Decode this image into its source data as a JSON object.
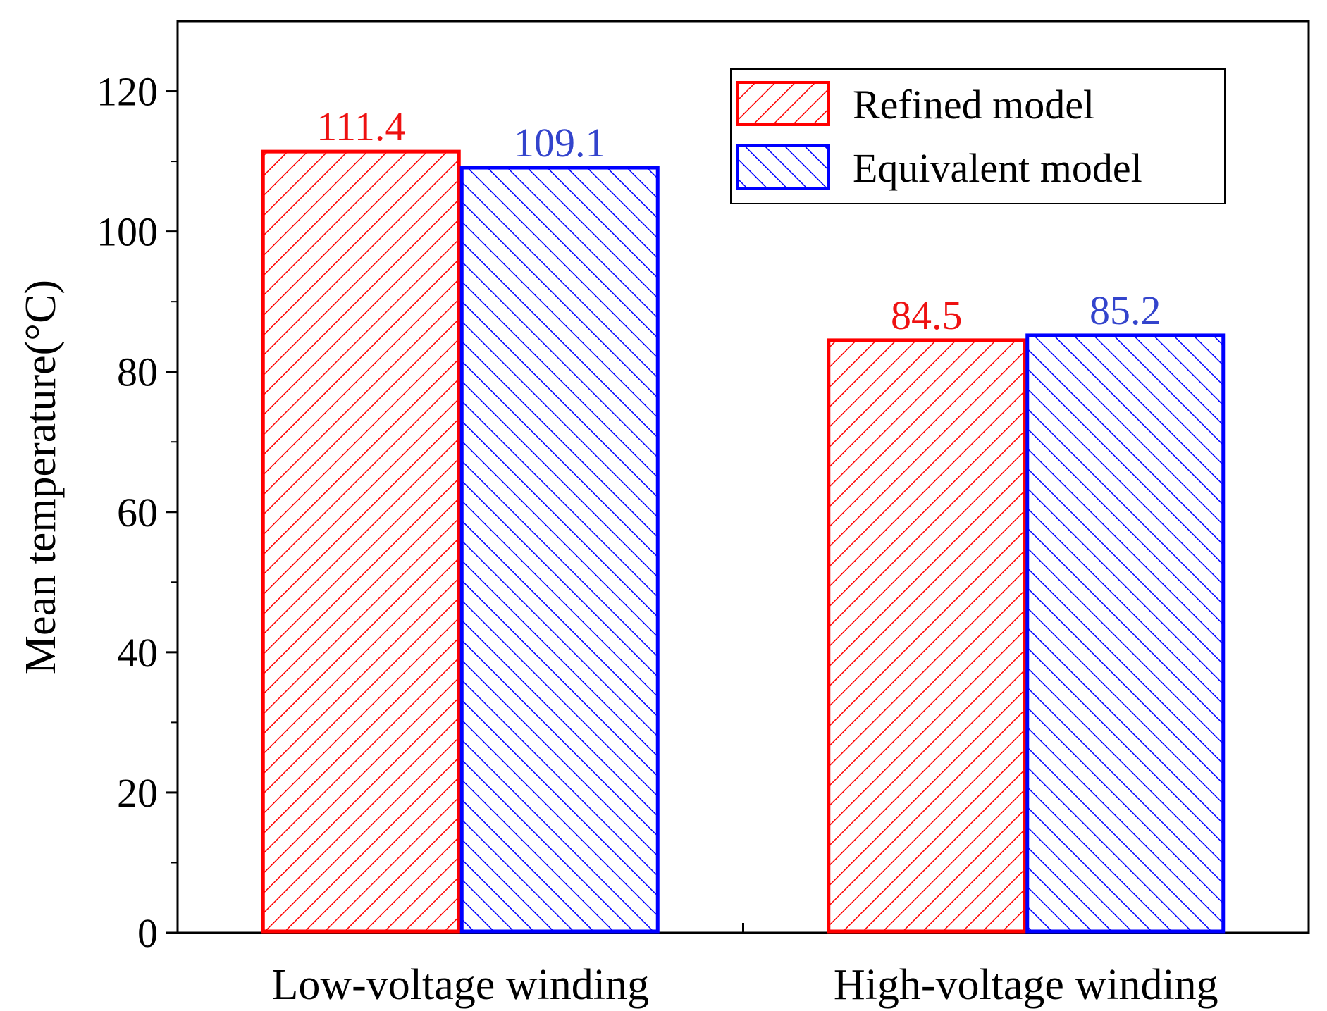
{
  "chart_data": {
    "type": "bar",
    "title": "",
    "xlabel": "",
    "ylabel": "Mean temperature(°C)",
    "ylim": [
      0,
      130
    ],
    "yticks": [
      0,
      20,
      40,
      60,
      80,
      100,
      120
    ],
    "categories": [
      "Low-voltage winding",
      "High-voltage winding"
    ],
    "series": [
      {
        "name": "Refined model",
        "values": [
          111.4,
          84.5
        ],
        "labels": [
          "111.4",
          "84.5"
        ],
        "color": "#ff0000",
        "label_color": "#ee1111",
        "hatch": "forward-diagonal"
      },
      {
        "name": "Equivalent model",
        "values": [
          109.1,
          85.2
        ],
        "labels": [
          "109.1",
          "85.2"
        ],
        "color": "#0000ff",
        "label_color": "#3344cc",
        "hatch": "backward-diagonal"
      }
    ],
    "legend": "top-right",
    "grid": false
  }
}
